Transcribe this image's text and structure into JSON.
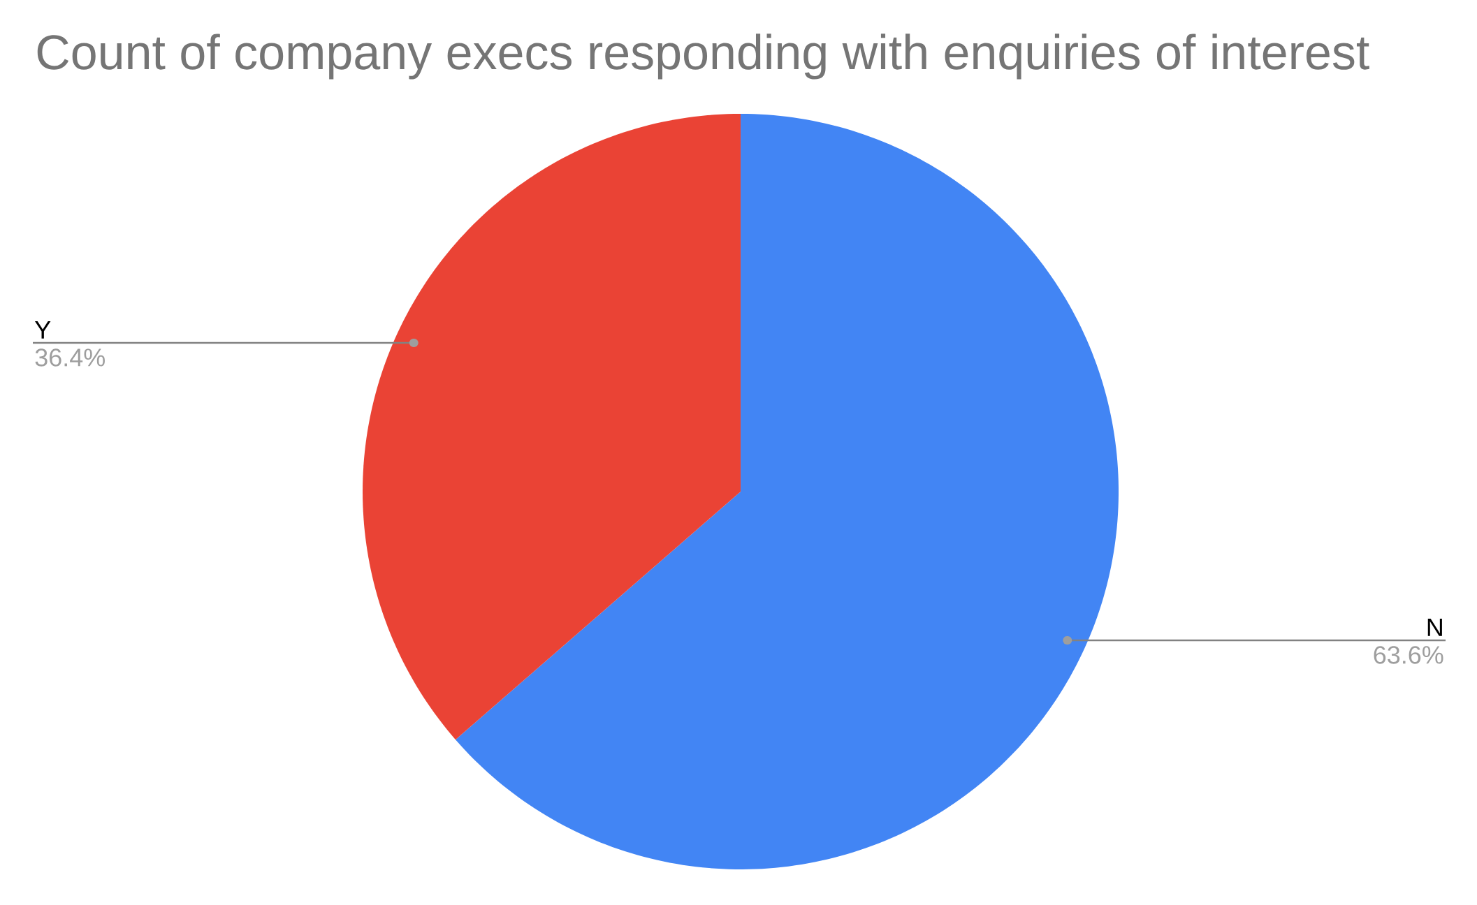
{
  "chart_data": {
    "type": "pie",
    "title": "Count of company execs responding with enquiries of interest",
    "categories": [
      "N",
      "Y"
    ],
    "values": [
      63.6,
      36.4
    ],
    "colors": [
      "#4285f4",
      "#ea4335"
    ],
    "value_labels": [
      "63.6%",
      "36.4%"
    ]
  }
}
